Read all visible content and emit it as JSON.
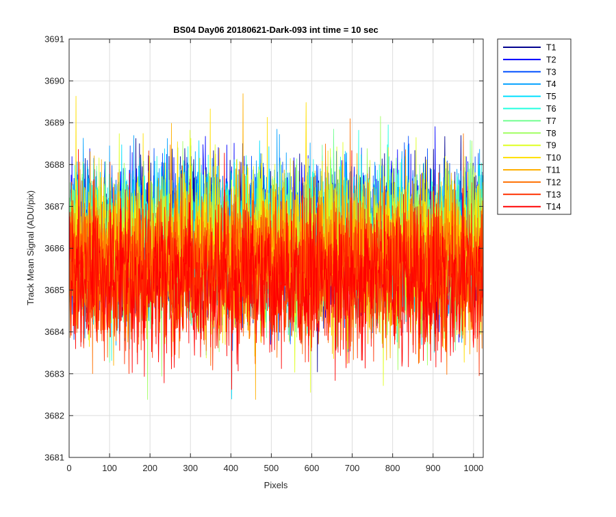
{
  "chart_data": {
    "type": "line",
    "title": "BS04 Day06 20180621-Dark-093 int time = 10 sec",
    "xlabel": "Pixels",
    "ylabel": "Track Mean Signal (ADU/pix)",
    "xlim": [
      0,
      1024
    ],
    "ylim": [
      3681,
      3691
    ],
    "xticks": [
      0,
      100,
      200,
      300,
      400,
      500,
      600,
      700,
      800,
      900,
      1000
    ],
    "yticks": [
      3681,
      3682,
      3683,
      3684,
      3685,
      3686,
      3687,
      3688,
      3689,
      3690,
      3691
    ],
    "grid": true,
    "legend_position": "outside-right-top",
    "series": [
      {
        "name": "T1",
        "color": "#00008f",
        "mean": 3686.3
      },
      {
        "name": "T2",
        "color": "#0000ff",
        "mean": 3686.3
      },
      {
        "name": "T3",
        "color": "#0050ff",
        "mean": 3686.2
      },
      {
        "name": "T4",
        "color": "#00a0ff",
        "mean": 3686.2
      },
      {
        "name": "T5",
        "color": "#00dfff",
        "mean": 3686.1
      },
      {
        "name": "T6",
        "color": "#20ffdf",
        "mean": 3686.1
      },
      {
        "name": "T7",
        "color": "#70ff8f",
        "mean": 3686.1
      },
      {
        "name": "T8",
        "color": "#a0ff60",
        "mean": 3686.0
      },
      {
        "name": "T9",
        "color": "#dfff20",
        "mean": 3686.0
      },
      {
        "name": "T10",
        "color": "#ffdf00",
        "mean": 3685.9
      },
      {
        "name": "T11",
        "color": "#ffaf00",
        "mean": 3685.8
      },
      {
        "name": "T12",
        "color": "#ff7000",
        "mean": 3685.6
      },
      {
        "name": "T13",
        "color": "#ff3000",
        "mean": 3685.4
      },
      {
        "name": "T14",
        "color": "#ff0000",
        "mean": 3685.2
      }
    ]
  }
}
